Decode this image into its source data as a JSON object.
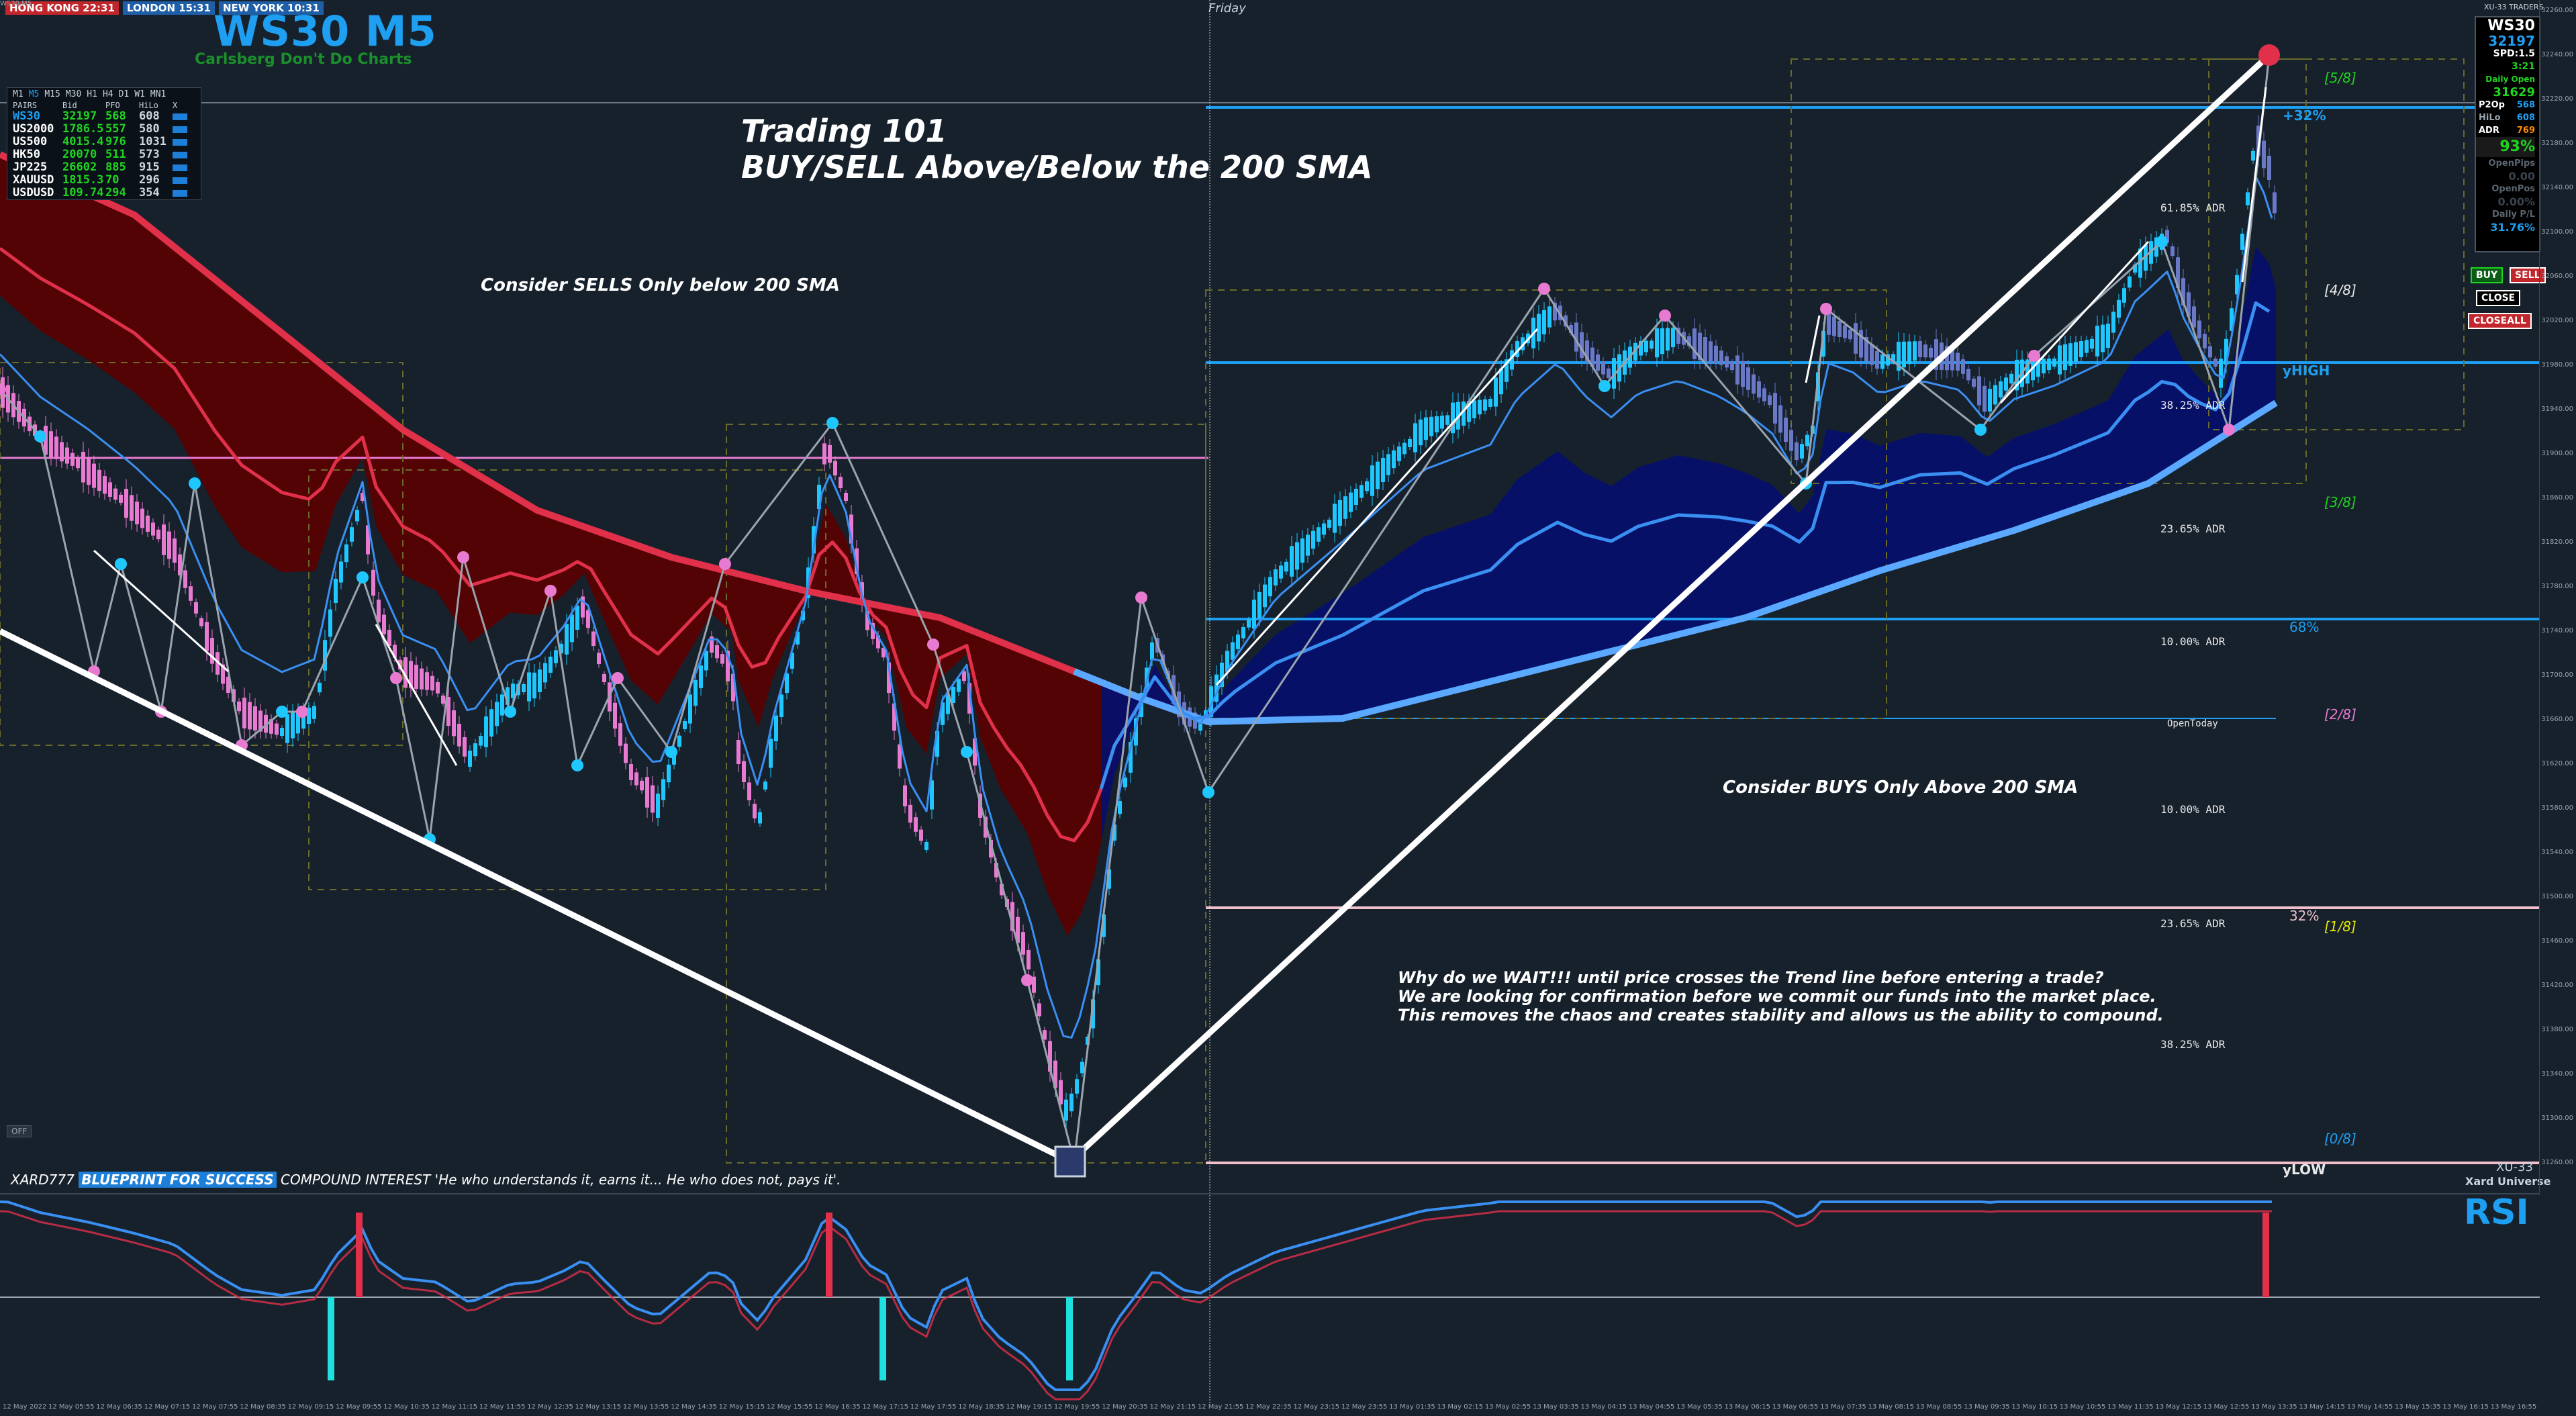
{
  "sessions": [
    {
      "label": "HONG KONG 22:31",
      "color": "#c0262b"
    },
    {
      "label": "LONDON 15:31",
      "color": "#1e5fa8"
    },
    {
      "label": "NEW YORK 10:31",
      "color": "#1e5fa8"
    }
  ],
  "symbol_tag": "WS30,M5",
  "title": "WS30 M5",
  "subtitle": "Carlsberg Don't Do Charts",
  "day_label": "Friday",
  "timeframes": [
    "M1",
    "M5",
    "M15",
    "M30",
    "H1",
    "H4",
    "D1",
    "W1",
    "MN1"
  ],
  "active_timeframe": "M5",
  "pairs_table": {
    "headers": [
      "PAIRS",
      "Bid",
      "PFO",
      "HiLo",
      "X"
    ],
    "rows": [
      {
        "pair": "WS30",
        "bid": "32197",
        "pfo": "568",
        "hilo": "608",
        "color": "#1e9ff2"
      },
      {
        "pair": "US2000",
        "bid": "1786.5",
        "pfo": "557",
        "hilo": "580",
        "color": "#ffffff"
      },
      {
        "pair": "US500",
        "bid": "4015.4",
        "pfo": "976",
        "hilo": "1031",
        "color": "#ffffff"
      },
      {
        "pair": "HK50",
        "bid": "20070",
        "pfo": "511",
        "hilo": "573",
        "color": "#ffffff"
      },
      {
        "pair": "JP225",
        "bid": "26602",
        "pfo": "885",
        "hilo": "915",
        "color": "#ffffff"
      },
      {
        "pair": "XAUUSD",
        "bid": "1815.3",
        "pfo": "70",
        "hilo": "296",
        "color": "#ffffff"
      },
      {
        "pair": "USDUSD",
        "bid": "109.74",
        "pfo": "294",
        "hilo": "354",
        "color": "#ffffff"
      }
    ]
  },
  "annotations": {
    "trading101_line1": "Trading 101",
    "trading101_line2": "BUY/SELL Above/Below the 200 SMA",
    "sells_note": "Consider SELLS Only below 200 SMA",
    "buys_note": "Consider BUYS Only Above 200 SMA",
    "why_line1": "Why do we WAIT!!! until price crosses the Trend line before entering a trade?",
    "why_line2": "We are looking for confirmation before we commit our funds into the market place.",
    "why_line3": "This removes the chaos and creates stability and allows us the ability to compound."
  },
  "levels": {
    "frac_5_8": "[5/8]",
    "frac_4_8": "[4/8]",
    "frac_3_8": "[3/8]",
    "frac_2_8": "[2/8]",
    "frac_1_8": "[1/8]",
    "frac_0_8": "[0/8]",
    "plus32": "+32%",
    "yhigh": "yHIGH",
    "ylow": "yLOW",
    "pct68": "68%",
    "pct32": "32%",
    "adr_618": "61.85% ADR",
    "adr_382_top": "38.25% ADR",
    "adr_236_top": "23.65% ADR",
    "adr_10_top": "10.00% ADR",
    "open_today": "OpenToday",
    "adr_10_bot": "10.00% ADR",
    "adr_236_bot": "23.65% ADR",
    "adr_382_bot": "38.25% ADR"
  },
  "info_panel": {
    "symbol": "WS30",
    "price": "32197",
    "spd": "SPD:1.5",
    "timer": "3:21",
    "daily_open_label": "Daily Open",
    "daily_open": "31629",
    "p2op_label": "P2Op",
    "p2op": "568",
    "hilo_label": "HiLo",
    "hilo": "608",
    "adr_label": "ADR",
    "adr": "769",
    "pct": "93%",
    "openpips_label": "OpenPips",
    "openpips": "0.00",
    "openpos_label": "OpenPos",
    "openpos": "0.00%",
    "dailypl_label": "Daily P/L",
    "dailypl": "31.76%"
  },
  "trade_buttons": {
    "buy": "BUY",
    "sell": "SELL",
    "close": "CLOSE",
    "closeall": "CLOSEALL"
  },
  "broker_tag": "XU-33 TRADERS",
  "footer": {
    "prefix": "XARD777",
    "highlight": "BLUEPRINT FOR SUCCESS",
    "quote": "COMPOUND INTEREST 'He who understands it, earns it... He who does not, pays it'.",
    "xu": "XU-33",
    "universe": "Xard Universe"
  },
  "off_label": "OFF",
  "rsi_label": "RSI",
  "price_axis": [
    "32260.00",
    "32240.00",
    "32220.00",
    "32180.00",
    "32140.00",
    "32100.00",
    "32060.00",
    "32020.00",
    "31980.00",
    "31940.00",
    "31900.00",
    "31860.00",
    "31820.00",
    "31780.00",
    "31740.00",
    "31700.00",
    "31660.00",
    "31620.00",
    "31580.00",
    "31540.00",
    "31500.00",
    "31460.00",
    "31420.00",
    "31380.00",
    "31340.00",
    "31300.00",
    "31260.00"
  ],
  "time_axis": [
    "12 May 2022",
    "12 May 05:55",
    "12 May 06:35",
    "12 May 07:15",
    "12 May 07:55",
    "12 May 08:35",
    "12 May 09:15",
    "12 May 09:55",
    "12 May 10:35",
    "12 May 11:15",
    "12 May 11:55",
    "12 May 12:35",
    "12 May 13:15",
    "12 May 13:55",
    "12 May 14:35",
    "12 May 15:15",
    "12 May 15:55",
    "12 May 16:35",
    "12 May 17:15",
    "12 May 17:55",
    "12 May 18:35",
    "12 May 19:15",
    "12 May 19:55",
    "12 May 20:35",
    "12 May 21:15",
    "12 May 21:55",
    "12 May 22:35",
    "12 May 23:15",
    "12 May 23:55",
    "13 May 01:35",
    "13 May 02:15",
    "13 May 02:55",
    "13 May 03:35",
    "13 May 04:15",
    "13 May 04:55",
    "13 May 05:35",
    "13 May 06:15",
    "13 May 06:55",
    "13 May 07:35",
    "13 May 08:15",
    "13 May 08:55",
    "13 May 09:35",
    "13 May 10:15",
    "13 May 10:55",
    "13 May 11:35",
    "13 May 12:15",
    "13 May 12:55",
    "13 May 13:35",
    "13 May 14:15",
    "13 May 14:55",
    "13 May 15:35",
    "13 May 16:15",
    "13 May 16:55"
  ]
}
